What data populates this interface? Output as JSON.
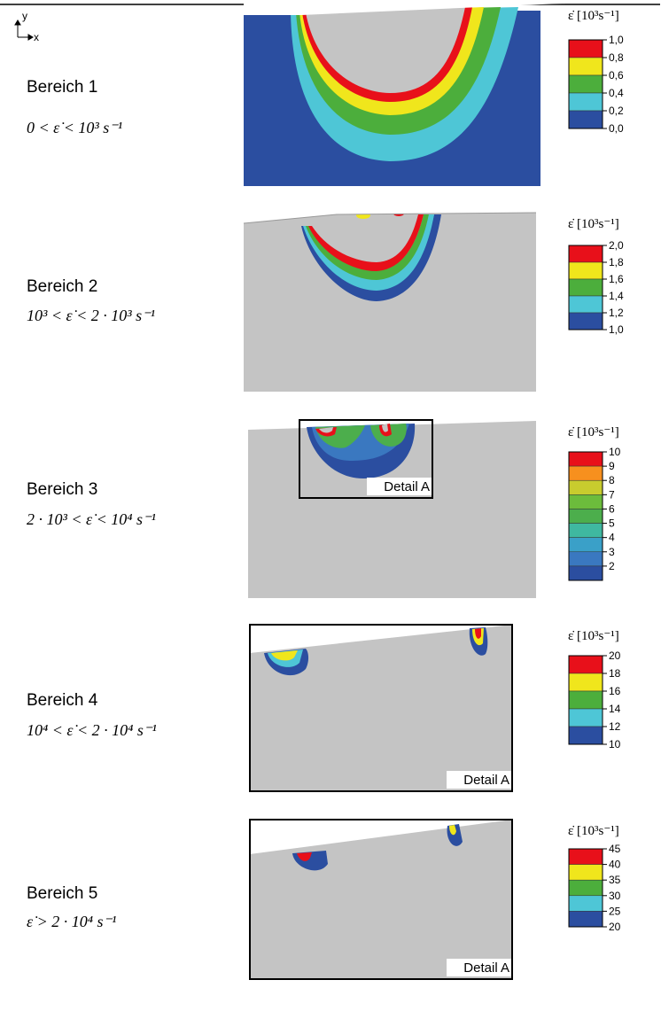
{
  "axes": {
    "y": "y",
    "x": "x"
  },
  "panels": [
    {
      "label": "Bereich 1",
      "formula": "0 <  ε̇ < 10³ s⁻¹",
      "legend": {
        "title": "ε̇  [10³s⁻¹]",
        "ticks": [
          "1,0",
          "0,8",
          "0,6",
          "0,4",
          "0,2",
          "0,0"
        ],
        "colors": [
          "#e8101a",
          "#f0e61c",
          "#4cae3c",
          "#4ec6d6",
          "#2b4ea0"
        ]
      }
    },
    {
      "label": "Bereich 2",
      "formula": "10³ <  ε̇ < 2 · 10³ s⁻¹",
      "legend": {
        "title": "ε̇  [10³s⁻¹]",
        "ticks": [
          "2,0",
          "1,8",
          "1,6",
          "1,4",
          "1,2",
          "1,0"
        ],
        "colors": [
          "#e8101a",
          "#f0e61c",
          "#4cae3c",
          "#4ec6d6",
          "#2b4ea0"
        ]
      }
    },
    {
      "label": "Bereich 3",
      "formula": "2 · 10³ <  ε̇ < 10⁴ s⁻¹",
      "legend": {
        "title": "ε̇  [10³s⁻¹]",
        "ticks": [
          "10",
          "9",
          "8",
          "7",
          "6",
          "5",
          "4",
          "3",
          "2"
        ],
        "colors": [
          "#e8101a",
          "#f7901e",
          "#c8cc2e",
          "#6cbc3c",
          "#4cae4c",
          "#3fb8a0",
          "#3aa0c8",
          "#3a78c0",
          "#2b4ea0"
        ]
      },
      "detail": "Detail A"
    },
    {
      "label": "Bereich 4",
      "formula": "10⁴ <  ε̇ < 2 · 10⁴ s⁻¹",
      "legend": {
        "title": "ε̇  [10³s⁻¹]",
        "ticks": [
          "20",
          "18",
          "16",
          "14",
          "12",
          "10"
        ],
        "colors": [
          "#e8101a",
          "#f0e61c",
          "#4cae3c",
          "#4ec6d6",
          "#2b4ea0"
        ]
      },
      "detail": "Detail A"
    },
    {
      "label": "Bereich 5",
      "formula": "ε̇ > 2 · 10⁴ s⁻¹",
      "legend": {
        "title": "ε̇  [10³s⁻¹]",
        "ticks": [
          "45",
          "40",
          "35",
          "30",
          "25",
          "20"
        ],
        "colors": [
          "#e8101a",
          "#f0e61c",
          "#4cae3c",
          "#4ec6d6",
          "#2b4ea0"
        ]
      },
      "detail": "Detail A"
    }
  ]
}
